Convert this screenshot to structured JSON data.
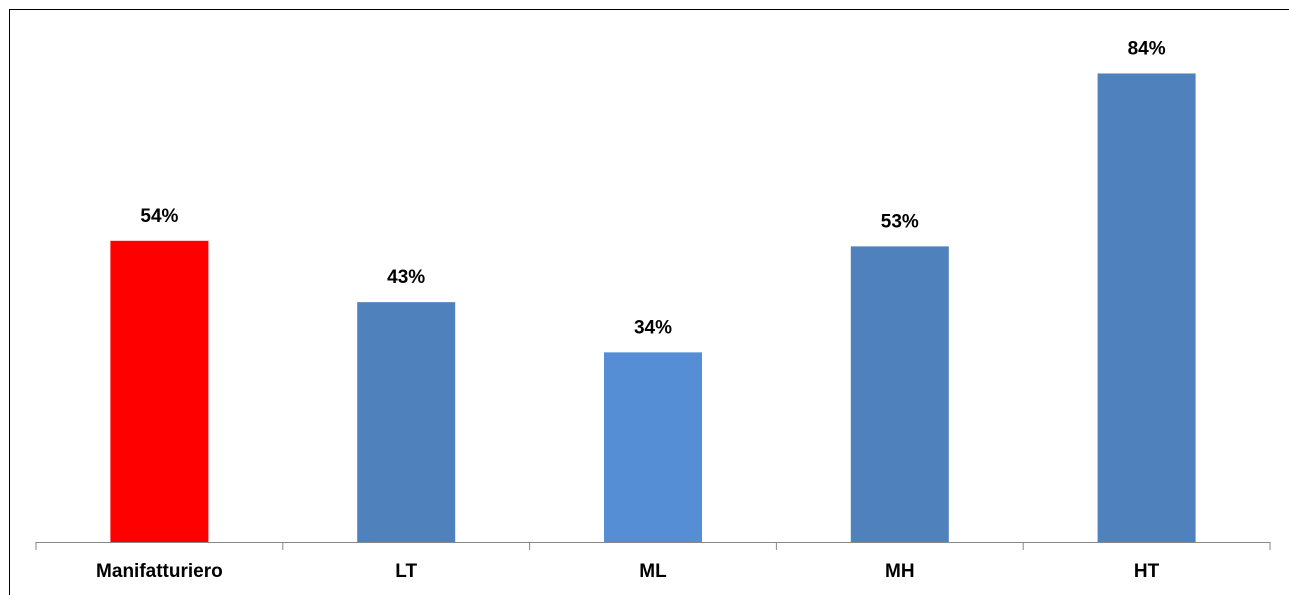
{
  "chart_data": {
    "type": "bar",
    "categories": [
      "Manifatturiero",
      "LT",
      "ML",
      "MH",
      "HT"
    ],
    "values": [
      54,
      43,
      34,
      53,
      84
    ],
    "value_labels": [
      "54%",
      "43%",
      "34%",
      "53%",
      "84%"
    ],
    "colors": [
      "#ff0000",
      "#4f81bd",
      "#558ed5",
      "#4f81bd",
      "#4f81bd"
    ],
    "ylim": [
      0,
      90
    ]
  }
}
